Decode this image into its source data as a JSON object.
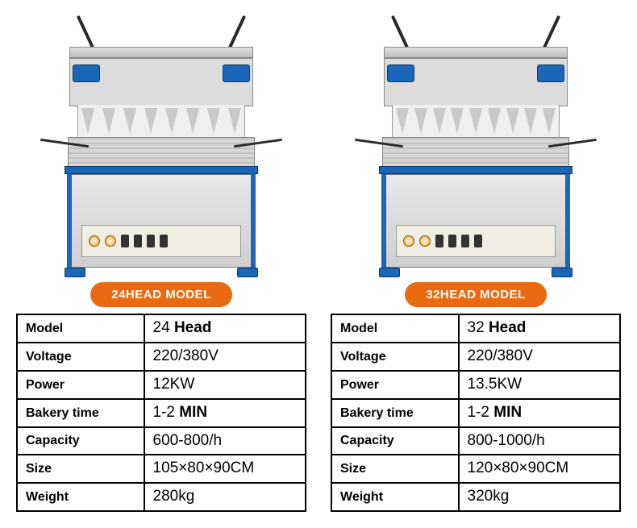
{
  "products": [
    {
      "badge": "24HEAD MODEL",
      "specs": {
        "model_label": "Model",
        "model_value_num": "24",
        "model_value_unit": "Head",
        "voltage_label": "Voltage",
        "voltage_value": "220/380V",
        "power_label": "Power",
        "power_value": "12KW",
        "bakery_label": "Bakery time",
        "bakery_value_num": "1-2",
        "bakery_value_unit": "MIN",
        "capacity_label": "Capacity",
        "capacity_value": "600-800/h",
        "size_label": "Size",
        "size_value": "105×80×90CM",
        "weight_label": "Weight",
        "weight_value": "280kg"
      }
    },
    {
      "badge": "32HEAD MODEL",
      "specs": {
        "model_label": "Model",
        "model_value_num": "32",
        "model_value_unit": "Head",
        "voltage_label": "Voltage",
        "voltage_value": "220/380V",
        "power_label": "Power",
        "power_value": "13.5KW",
        "bakery_label": "Bakery time",
        "bakery_value_num": "1-2",
        "bakery_value_unit": "MIN",
        "capacity_label": "Capacity",
        "capacity_value": "800-1000/h",
        "size_label": "Size",
        "size_value": "120×80×90CM",
        "weight_label": "Weight",
        "weight_value": "320kg"
      }
    }
  ],
  "colors": {
    "badge_bg": "#ea6a14",
    "badge_text": "#ffffff",
    "table_border": "#000000",
    "machine_accent": "#1a66b8"
  }
}
